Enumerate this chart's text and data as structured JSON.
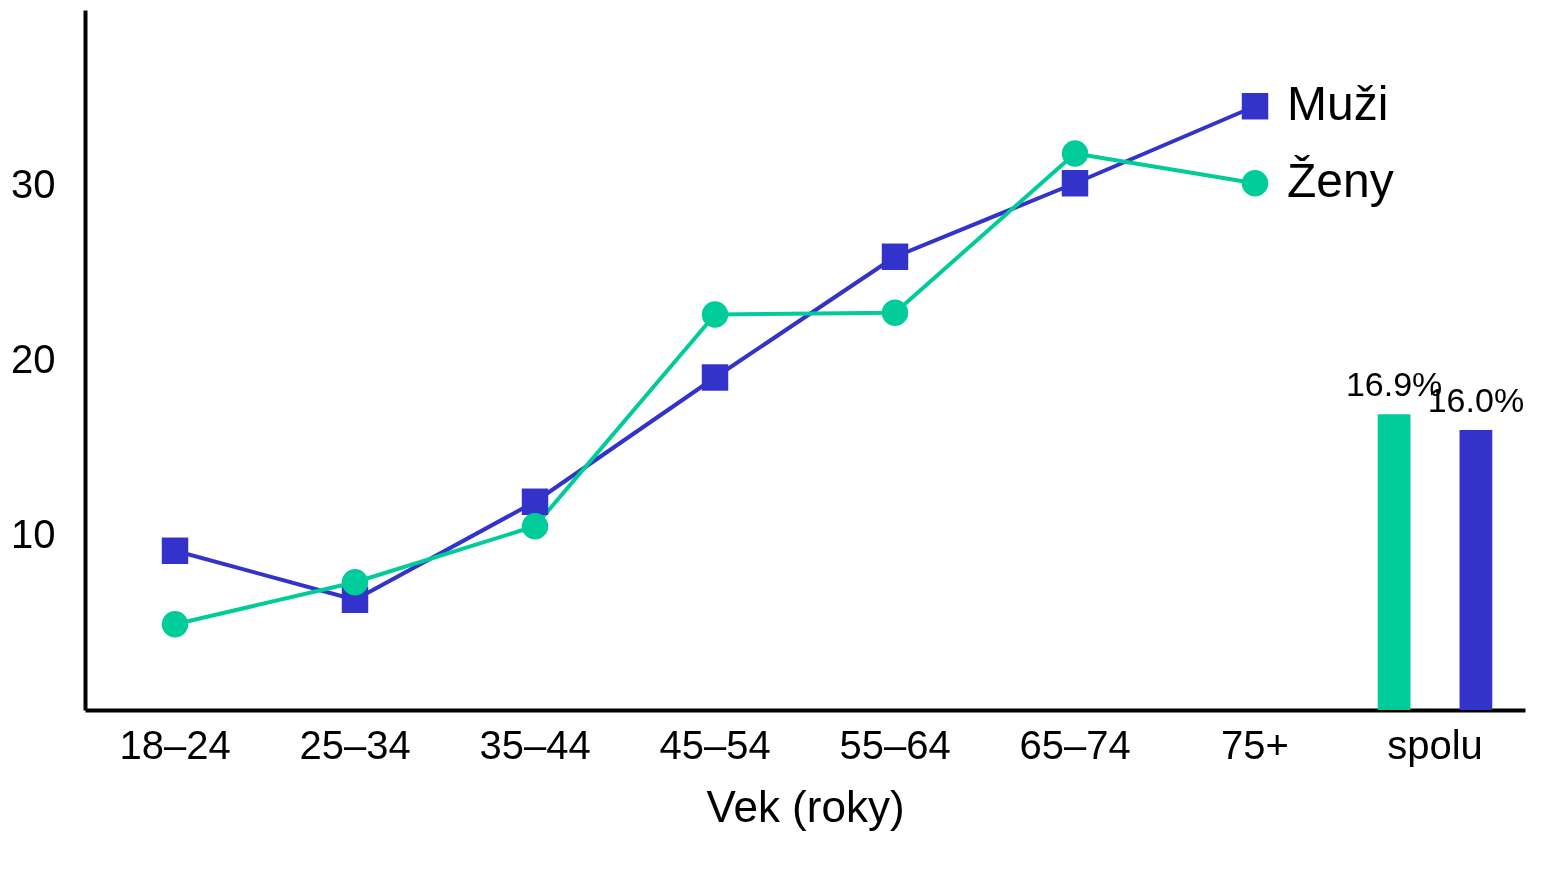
{
  "chart_data": {
    "type": "line",
    "xlabel": "Vek (roky)",
    "categories": [
      "18–24",
      "25–34",
      "35–44",
      "45–54",
      "55–64",
      "65–74",
      "75+",
      "spolu"
    ],
    "ylim": [
      0,
      40
    ],
    "yticks": [
      10,
      20,
      30
    ],
    "grid": false,
    "series": [
      {
        "name": "Muži",
        "color": "#3333cc",
        "marker": "square",
        "values": [
          9.1,
          6.3,
          11.9,
          19.0,
          25.9,
          30.1,
          34.5,
          null
        ]
      },
      {
        "name": "Ženy",
        "color": "#00cc99",
        "marker": "circle",
        "values": [
          4.9,
          7.3,
          10.5,
          22.6,
          22.7,
          31.8,
          30.1,
          null
        ]
      },
      {
        "type": "bar",
        "color": "#00cc99",
        "values": [
          null,
          null,
          null,
          null,
          null,
          null,
          null,
          16.9
        ],
        "value_labels": [
          null,
          null,
          null,
          null,
          null,
          null,
          null,
          "16.9%"
        ]
      },
      {
        "type": "bar",
        "color": "#3333cc",
        "values": [
          null,
          null,
          null,
          null,
          null,
          null,
          null,
          16.0
        ],
        "value_labels": [
          null,
          null,
          null,
          null,
          null,
          null,
          null,
          "16.0%"
        ]
      }
    ]
  }
}
